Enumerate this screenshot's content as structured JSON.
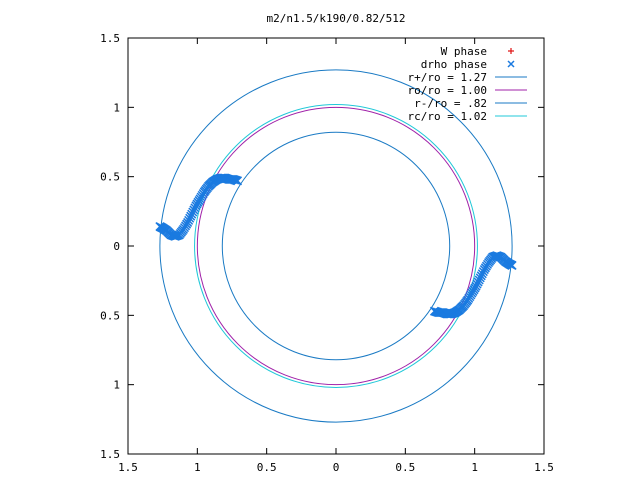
{
  "chart_data": {
    "type": "scatter",
    "title": "m2/n1.5/k190/0.82/512",
    "xlabel": "",
    "ylabel": "",
    "xlim": [
      -1.5,
      1.5
    ],
    "ylim": [
      -1.5,
      1.5
    ],
    "x_tick_values": [
      -1.5,
      -1,
      -0.5,
      0,
      0.5,
      1,
      1.5
    ],
    "x_tick_labels": [
      "1.5",
      "1",
      "0.5",
      "0",
      "0.5",
      "1",
      "1.5"
    ],
    "y_tick_values": [
      1.5,
      1,
      0.5,
      0,
      -0.5,
      -1,
      -1.5
    ],
    "y_tick_labels": [
      "1.5",
      "1",
      "0.5",
      "0",
      "0.5",
      "1",
      "1.5"
    ],
    "grid": false,
    "legend_position": "top-right",
    "circles": [
      {
        "name": "r+/ro = 1.27",
        "radius": 1.27,
        "color": "#1a7ac4"
      },
      {
        "name": "ro/ro = 1.00",
        "radius": 1.0,
        "color": "#a020a8"
      },
      {
        "name": "r-/ro = .82",
        "radius": 0.82,
        "color": "#1a7ac4"
      },
      {
        "name": "rc/ro = 1.02",
        "radius": 1.02,
        "color": "#20c8d8"
      }
    ],
    "series": [
      {
        "name": "W phase",
        "marker": "+",
        "color": "#e01010",
        "x": [],
        "y": []
      },
      {
        "name": "drho phase",
        "marker": "x",
        "color": "#1a7ae0",
        "x": [
          -1.27,
          -1.25,
          -1.22,
          -1.19,
          -1.16,
          -1.13,
          -1.1,
          -1.07,
          -1.04,
          -1.01,
          -0.98,
          -0.95,
          -0.92,
          -0.89,
          -0.86,
          -0.83,
          -0.8,
          -0.77,
          -0.74,
          -0.71,
          0.71,
          0.74,
          0.77,
          0.8,
          0.83,
          0.86,
          0.89,
          0.92,
          0.95,
          0.98,
          1.01,
          1.04,
          1.07,
          1.1,
          1.13,
          1.16,
          1.19,
          1.22,
          1.25,
          1.27
        ],
        "y": [
          0.14,
          0.13,
          0.11,
          0.08,
          0.07,
          0.08,
          0.12,
          0.17,
          0.23,
          0.29,
          0.34,
          0.39,
          0.43,
          0.46,
          0.48,
          0.49,
          0.49,
          0.48,
          0.48,
          0.47,
          -0.47,
          -0.48,
          -0.48,
          -0.49,
          -0.49,
          -0.48,
          -0.46,
          -0.43,
          -0.39,
          -0.34,
          -0.29,
          -0.23,
          -0.17,
          -0.12,
          -0.08,
          -0.07,
          -0.08,
          -0.11,
          -0.13,
          -0.14
        ]
      }
    ]
  }
}
